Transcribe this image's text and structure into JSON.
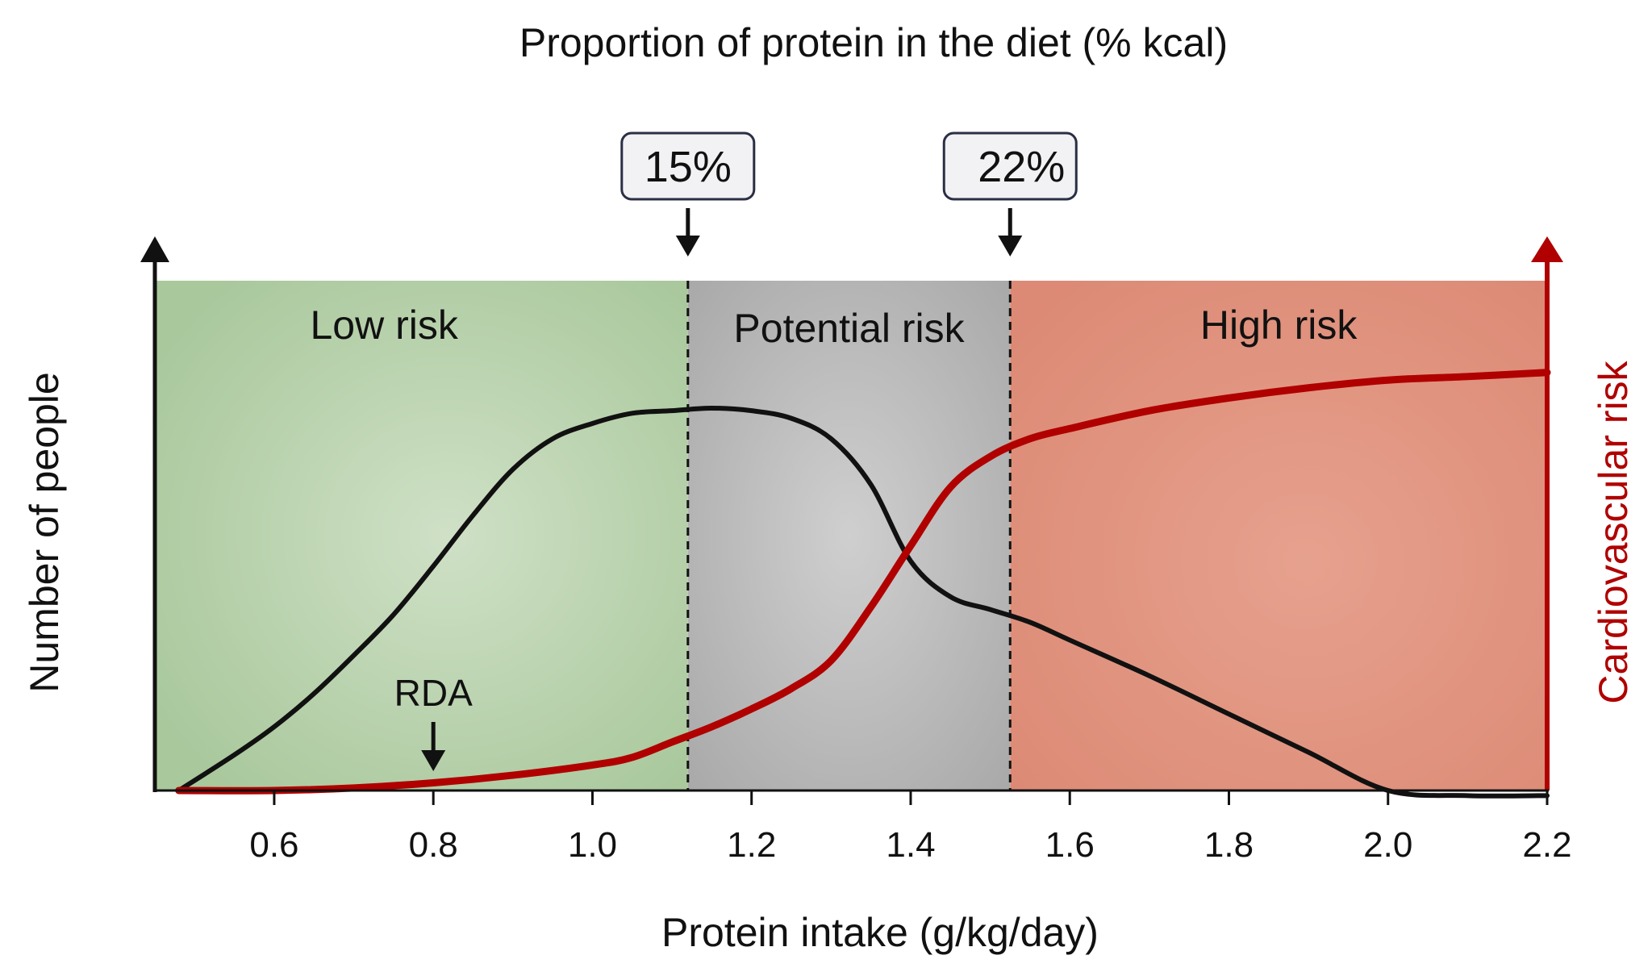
{
  "chart_data": {
    "type": "line",
    "title": "Proportion of protein in the diet (% kcal)",
    "xlabel": "Protein intake (g/kg/day)",
    "ylabel_left": "Number of people",
    "ylabel_right": "Cardiovascular risk",
    "xlim": [
      0.45,
      2.2
    ],
    "ylim": [
      0,
      1
    ],
    "x_ticks": [
      "0.6",
      "0.8",
      "1.0",
      "1.2",
      "1.4",
      "1.6",
      "1.8",
      "2.0",
      "2.2"
    ],
    "zones": [
      {
        "label": "Low risk",
        "from": 0.45,
        "to": 1.12,
        "color": "#a9c89c"
      },
      {
        "label": "Potential risk",
        "from": 1.12,
        "to": 1.525,
        "color": "#b4b4b4"
      },
      {
        "label": "High risk",
        "from": 1.525,
        "to": 2.2,
        "color": "#e0907b"
      }
    ],
    "thresholds": [
      {
        "label": "15%",
        "x": 1.12
      },
      {
        "label": "22%",
        "x": 1.525
      }
    ],
    "rda": {
      "label": "RDA",
      "x": 0.8
    },
    "series": [
      {
        "color": "#111111",
        "x": [
          0.48,
          0.55,
          0.6,
          0.65,
          0.7,
          0.75,
          0.8,
          0.85,
          0.9,
          0.95,
          1.0,
          1.05,
          1.1,
          1.15,
          1.2,
          1.25,
          1.3,
          1.35,
          1.4,
          1.45,
          1.5,
          1.55,
          1.6,
          1.7,
          1.8,
          1.9,
          2.0,
          2.1,
          2.2
        ],
        "y": [
          0.0,
          0.07,
          0.125,
          0.19,
          0.265,
          0.345,
          0.44,
          0.54,
          0.63,
          0.69,
          0.72,
          0.74,
          0.745,
          0.75,
          0.745,
          0.73,
          0.69,
          0.6,
          0.45,
          0.38,
          0.355,
          0.33,
          0.295,
          0.225,
          0.15,
          0.075,
          0.0,
          -0.01,
          -0.01
        ]
      },
      {
        "color": "#b00000",
        "x": [
          0.48,
          0.6,
          0.7,
          0.8,
          0.9,
          1.0,
          1.05,
          1.1,
          1.15,
          1.2,
          1.25,
          1.3,
          1.35,
          1.4,
          1.45,
          1.5,
          1.55,
          1.6,
          1.7,
          1.8,
          1.9,
          2.0,
          2.1,
          2.2
        ],
        "y": [
          0.0,
          0.0,
          0.005,
          0.015,
          0.03,
          0.05,
          0.065,
          0.095,
          0.125,
          0.16,
          0.2,
          0.255,
          0.36,
          0.48,
          0.595,
          0.655,
          0.69,
          0.71,
          0.745,
          0.77,
          0.79,
          0.805,
          0.812,
          0.82
        ]
      }
    ],
    "grid": false,
    "legend": "none"
  }
}
